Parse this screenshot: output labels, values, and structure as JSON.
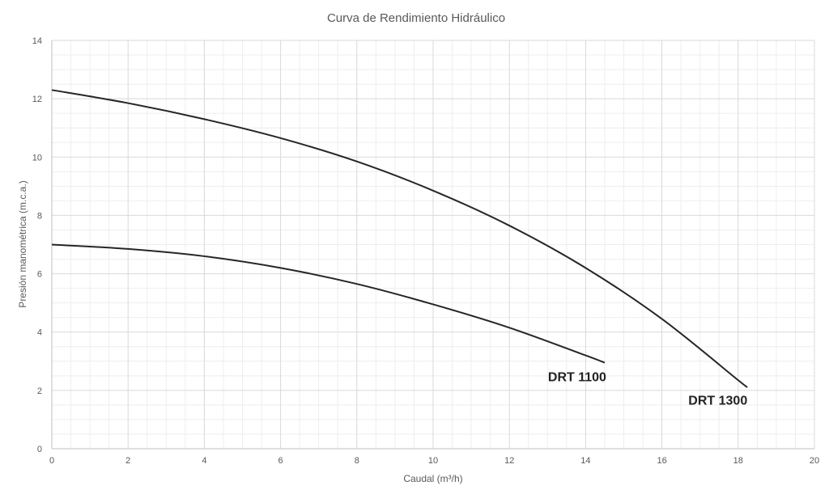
{
  "chart_data": {
    "type": "line",
    "title": "Curva de Rendimiento Hidráulico",
    "xlabel": "Caudal (m³/h)",
    "ylabel": "Presión manométrica (m.c.a.)",
    "xlim": [
      0,
      20
    ],
    "ylim": [
      0,
      14
    ],
    "x_major_step": 2,
    "y_major_step": 2,
    "x_minor_step": 0.5,
    "y_minor_step": 0.5,
    "grid": true,
    "series": [
      {
        "name": "DRT 1100",
        "x": [
          0,
          2,
          4,
          6,
          8,
          10,
          12,
          14,
          14.5
        ],
        "y": [
          7.0,
          6.85,
          6.6,
          6.2,
          5.65,
          4.95,
          4.15,
          3.2,
          2.95
        ]
      },
      {
        "name": "DRT 1300",
        "x": [
          0,
          2,
          4,
          6,
          8,
          10,
          12,
          14,
          16,
          18,
          18.2
        ],
        "y": [
          12.3,
          11.85,
          11.3,
          10.65,
          9.85,
          8.85,
          7.65,
          6.2,
          4.45,
          2.35,
          2.15
        ]
      }
    ]
  }
}
